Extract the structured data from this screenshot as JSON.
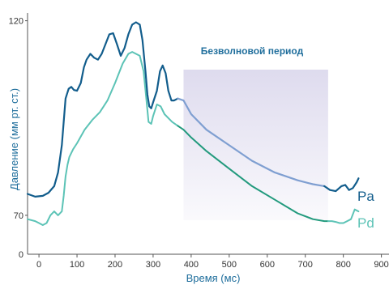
{
  "colors": {
    "pa": "#125d8c",
    "pd": "#5cc3b6",
    "pa_wavefree": "#7f9fd1",
    "pd_wavefree": "#229a7d",
    "accent_text": "#1f6e9c",
    "shade": "#dedbee",
    "axis": "#555555"
  },
  "chart_data": {
    "type": "line",
    "xlabel": "Время (мс)",
    "ylabel": "Давление (мм рт. ст.)",
    "xlim": [
      -30,
      920
    ],
    "ylim": [
      60,
      122
    ],
    "x_ticks": [
      0,
      100,
      200,
      300,
      400,
      500,
      600,
      700,
      800,
      900
    ],
    "y_tick_labels": [
      {
        "value": 120,
        "label": "120"
      },
      {
        "value": 70,
        "label": "70"
      }
    ],
    "axis_zero_label": "0",
    "annotation": {
      "text": "Безволновой период",
      "x_start": 380,
      "x_end": 760,
      "shade_color": "#dedbee"
    },
    "series": [
      {
        "name": "Pa",
        "color": "#125d8c",
        "x": [
          -30,
          -10,
          10,
          25,
          40,
          50,
          60,
          70,
          78,
          85,
          92,
          100,
          110,
          118,
          125,
          135,
          145,
          155,
          165,
          175,
          185,
          195,
          205,
          215,
          225,
          235,
          245,
          255,
          265,
          272,
          280,
          285,
          290,
          295,
          300,
          310,
          318,
          325,
          333,
          340,
          348,
          355,
          365,
          380,
          400,
          440,
          500,
          560,
          620,
          680,
          720,
          750,
          765,
          780,
          795,
          805,
          815,
          825,
          835,
          840
        ],
        "y": [
          75.5,
          74.8,
          75,
          75.8,
          77.5,
          81,
          88,
          100,
          102.5,
          103,
          102.2,
          102,
          104,
          108,
          110,
          111.5,
          110.5,
          110,
          111.5,
          114,
          116.5,
          116.8,
          114,
          111,
          113,
          116.5,
          119,
          119.6,
          119,
          115,
          107,
          101,
          98,
          97.5,
          99,
          102,
          107,
          108.5,
          106.5,
          102,
          99.5,
          99.5,
          100,
          99.5,
          96,
          92,
          88,
          84,
          81,
          79,
          78,
          77.5,
          76.5,
          76.2,
          77.5,
          77.8,
          76.5,
          77,
          78.5,
          79.5
        ]
      },
      {
        "name": "Pd",
        "color": "#5cc3b6",
        "x": [
          -30,
          -10,
          0,
          10,
          20,
          30,
          40,
          50,
          60,
          65,
          70,
          75,
          80,
          90,
          100,
          120,
          140,
          160,
          180,
          200,
          220,
          235,
          245,
          255,
          265,
          275,
          282,
          288,
          295,
          300,
          310,
          320,
          330,
          340,
          350,
          365,
          380,
          400,
          440,
          500,
          560,
          620,
          680,
          720,
          750,
          760,
          770,
          780,
          790,
          800,
          810,
          820,
          830,
          840
        ],
        "y": [
          69,
          68.5,
          68,
          67.5,
          68,
          70,
          71,
          70,
          71,
          75,
          80,
          83,
          85,
          87,
          88.5,
          92,
          94.5,
          96.5,
          99.5,
          104,
          109,
          111.5,
          112,
          111.5,
          111,
          107,
          100,
          94,
          93.5,
          95.5,
          98.5,
          98,
          96,
          95,
          94,
          93,
          92,
          90,
          86.5,
          82,
          77.5,
          74,
          70.5,
          69,
          68.5,
          68.5,
          68.5,
          68.3,
          68,
          68,
          68.5,
          69,
          71.5,
          71
        ]
      }
    ]
  }
}
